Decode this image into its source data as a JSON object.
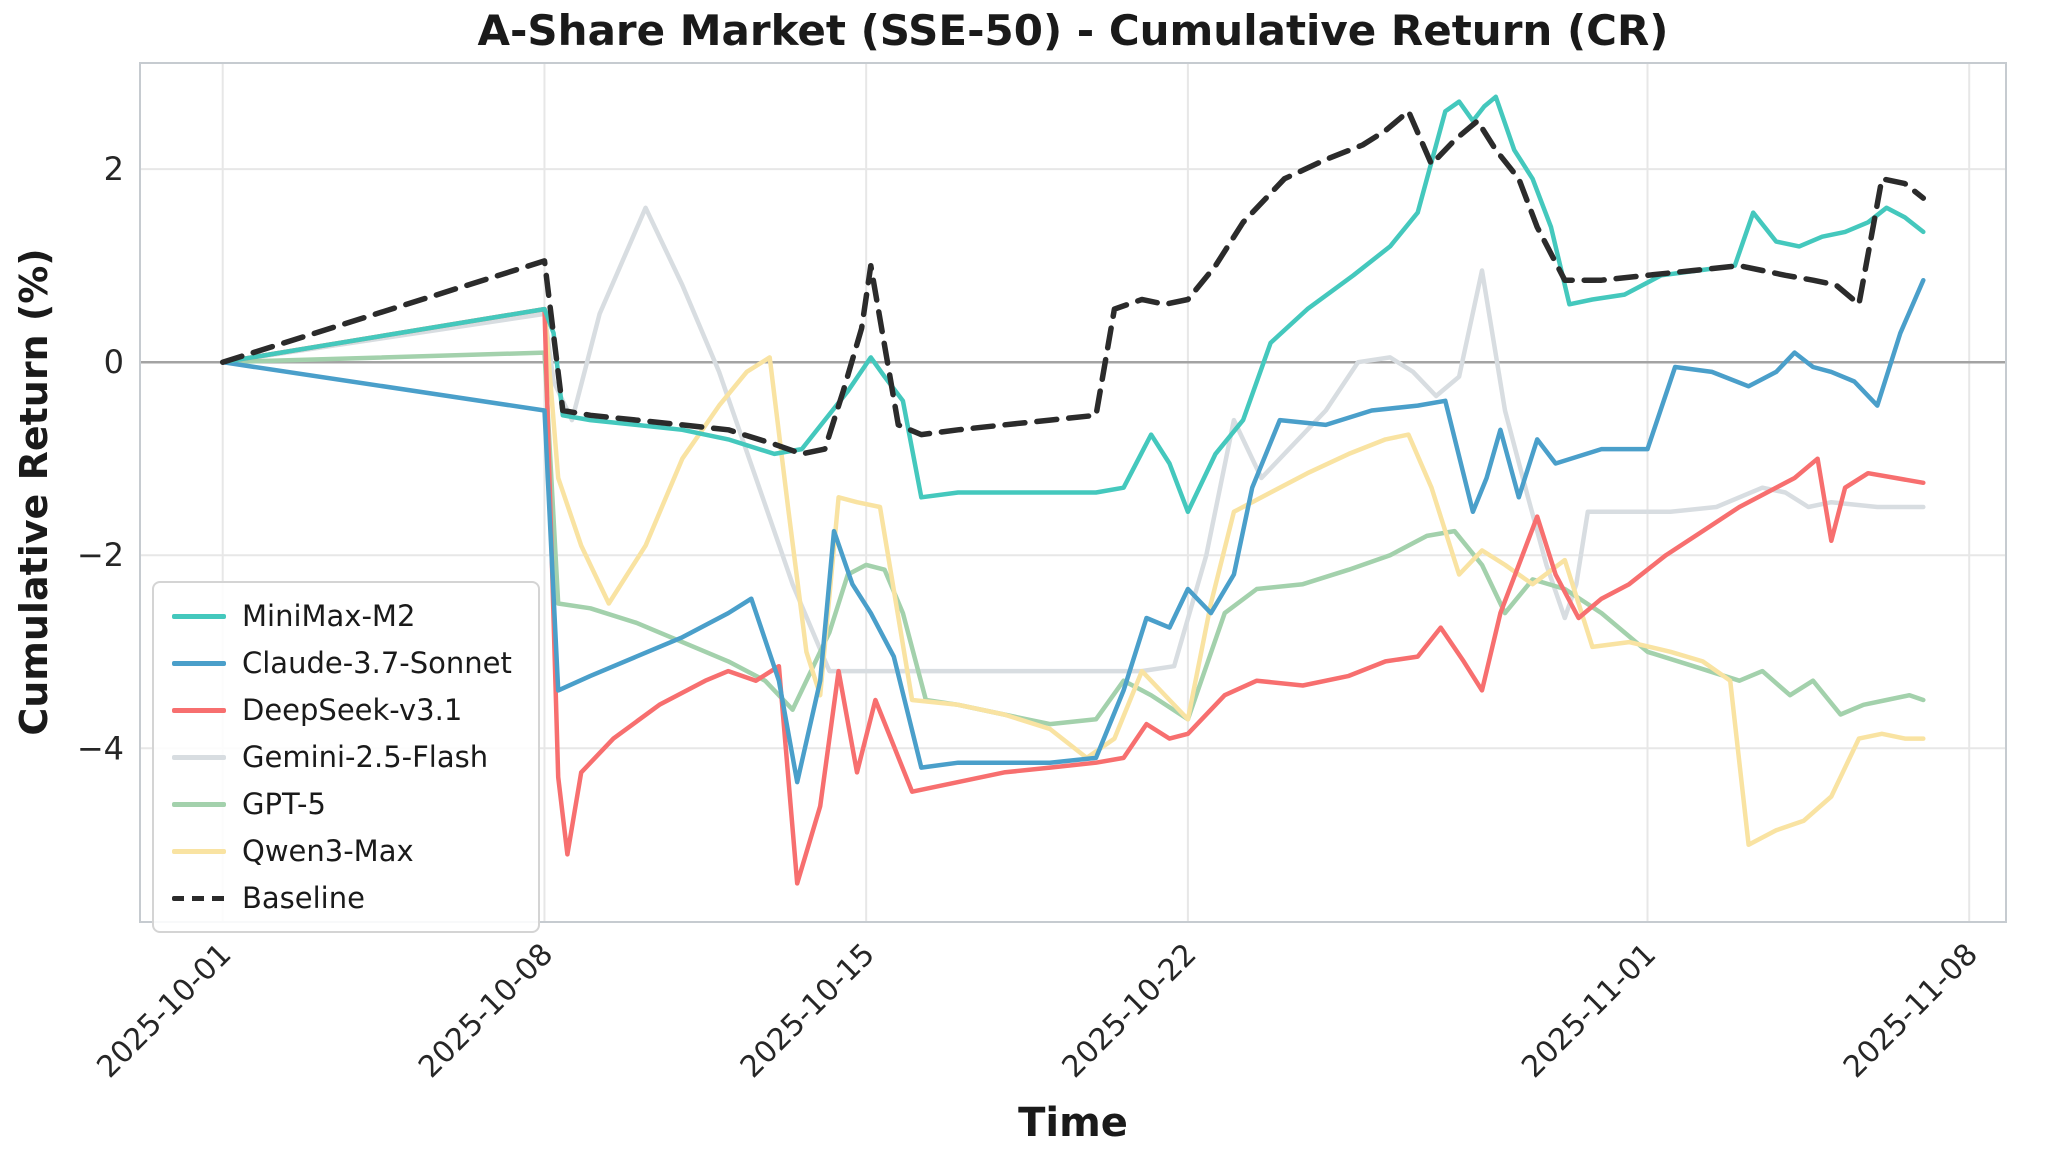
{
  "chart_data": {
    "type": "line",
    "title": "A-Share Market (SSE-50) - Cumulative Return (CR)",
    "xlabel": "Time",
    "ylabel": "Cumulative Return (%)",
    "x_unit": "days since 2025-10-01",
    "xlim": [
      -1.8,
      38.8
    ],
    "ylim": [
      -5.8,
      3.1
    ],
    "grid": true,
    "legend_position": "lower left",
    "zero_line_value": 0,
    "grid_color": "#e7e7e7",
    "zero_line_color": "#a3a3a3",
    "spine_color": "#c6cbd0",
    "x_ticks": [
      {
        "label": "2025-10-01",
        "day": 0
      },
      {
        "label": "2025-10-08",
        "day": 7
      },
      {
        "label": "2025-10-15",
        "day": 14
      },
      {
        "label": "2025-10-22",
        "day": 21
      },
      {
        "label": "2025-11-01",
        "day": 31
      },
      {
        "label": "2025-11-08",
        "day": 38
      }
    ],
    "y_ticks": [
      {
        "label": "2",
        "value": 2
      },
      {
        "label": "0",
        "value": 0
      },
      {
        "label": "−2",
        "value": -2
      },
      {
        "label": "−4",
        "value": -4
      }
    ],
    "series": [
      {
        "name": "MiniMax-M2",
        "color": "#44c8bd",
        "style": "solid",
        "width": 4.5,
        "x": [
          0,
          7.0,
          7.2,
          7.4,
          8.0,
          9.0,
          10.0,
          11.0,
          12.0,
          12.6,
          13.1,
          13.6,
          14.1,
          14.4,
          14.8,
          15.2,
          16.0,
          17.0,
          18.0,
          19.0,
          19.6,
          20.2,
          20.6,
          21.0,
          21.6,
          22.2,
          22.8,
          23.6,
          24.6,
          25.4,
          26.0,
          26.6,
          26.9,
          27.2,
          27.45,
          27.7,
          28.1,
          28.5,
          28.9,
          29.3,
          29.8,
          30.5,
          31.3,
          32.1,
          32.9,
          33.3,
          33.8,
          34.3,
          34.8,
          35.3,
          35.8,
          36.2,
          36.6,
          37.0
        ],
        "y": [
          0,
          0.55,
          0.3,
          -0.55,
          -0.6,
          -0.65,
          -0.7,
          -0.8,
          -0.95,
          -0.9,
          -0.6,
          -0.3,
          0.05,
          -0.15,
          -0.4,
          -1.4,
          -1.35,
          -1.35,
          -1.35,
          -1.35,
          -1.3,
          -0.75,
          -1.05,
          -1.55,
          -0.95,
          -0.6,
          0.2,
          0.55,
          0.9,
          1.2,
          1.55,
          2.6,
          2.7,
          2.5,
          2.65,
          2.75,
          2.2,
          1.9,
          1.4,
          0.6,
          0.65,
          0.7,
          0.9,
          0.95,
          1.0,
          1.55,
          1.25,
          1.2,
          1.3,
          1.35,
          1.45,
          1.6,
          1.5,
          1.35
        ]
      },
      {
        "name": "Claude-3.7-Sonnet",
        "color": "#4a9fca",
        "style": "solid",
        "width": 4.5,
        "x": [
          0,
          7.0,
          7.3,
          8.0,
          9.0,
          10.0,
          11.0,
          11.5,
          12.1,
          12.5,
          13.0,
          13.3,
          13.7,
          14.1,
          14.6,
          15.2,
          16.0,
          17.0,
          18.0,
          19.0,
          19.6,
          20.1,
          20.6,
          21.0,
          21.5,
          22.0,
          22.4,
          23.0,
          24.0,
          25.0,
          26.0,
          26.6,
          27.2,
          27.5,
          27.8,
          28.2,
          28.6,
          29.0,
          30.0,
          31.0,
          31.6,
          32.4,
          33.2,
          33.8,
          34.2,
          34.6,
          35.0,
          35.5,
          36.0,
          36.5,
          37.0
        ],
        "y": [
          0,
          -0.5,
          -3.4,
          -3.25,
          -3.05,
          -2.85,
          -2.6,
          -2.45,
          -3.3,
          -4.35,
          -3.3,
          -1.75,
          -2.3,
          -2.6,
          -3.05,
          -4.2,
          -4.15,
          -4.15,
          -4.15,
          -4.1,
          -3.4,
          -2.65,
          -2.75,
          -2.35,
          -2.6,
          -2.2,
          -1.3,
          -0.6,
          -0.65,
          -0.5,
          -0.45,
          -0.4,
          -1.55,
          -1.2,
          -0.7,
          -1.4,
          -0.8,
          -1.05,
          -0.9,
          -0.9,
          -0.05,
          -0.1,
          -0.25,
          -0.1,
          0.1,
          -0.05,
          -0.1,
          -0.2,
          -0.45,
          0.3,
          0.85
        ]
      },
      {
        "name": "DeepSeek-v3.1",
        "color": "#f76f6f",
        "style": "solid",
        "width": 4.5,
        "x": [
          0,
          7.0,
          7.3,
          7.5,
          7.8,
          8.5,
          9.5,
          10.5,
          11.0,
          11.6,
          12.1,
          12.5,
          13.0,
          13.4,
          13.8,
          14.2,
          15.0,
          16.0,
          17.0,
          18.0,
          19.0,
          19.6,
          20.1,
          20.6,
          21.0,
          21.8,
          22.5,
          23.5,
          24.5,
          25.3,
          26.0,
          26.5,
          27.0,
          27.4,
          27.8,
          28.2,
          28.6,
          29.0,
          29.5,
          30.0,
          30.6,
          31.4,
          32.2,
          33.0,
          33.6,
          34.2,
          34.7,
          35.0,
          35.3,
          35.8,
          36.4,
          37.0
        ],
        "y": [
          0,
          0.55,
          -4.3,
          -5.1,
          -4.25,
          -3.9,
          -3.55,
          -3.3,
          -3.2,
          -3.3,
          -3.15,
          -5.4,
          -4.6,
          -3.2,
          -4.25,
          -3.5,
          -4.45,
          -4.35,
          -4.25,
          -4.2,
          -4.15,
          -4.1,
          -3.75,
          -3.9,
          -3.85,
          -3.45,
          -3.3,
          -3.35,
          -3.25,
          -3.1,
          -3.05,
          -2.75,
          -3.1,
          -3.4,
          -2.6,
          -2.1,
          -1.6,
          -2.2,
          -2.65,
          -2.45,
          -2.3,
          -2.0,
          -1.75,
          -1.5,
          -1.35,
          -1.2,
          -1.0,
          -1.85,
          -1.3,
          -1.15,
          -1.2,
          -1.25
        ]
      },
      {
        "name": "Gemini-2.5-Flash",
        "color": "#d8dde1",
        "style": "solid",
        "width": 4.5,
        "x": [
          0,
          7.0,
          7.2,
          7.6,
          8.2,
          9.2,
          10.0,
          10.8,
          11.6,
          12.4,
          13.2,
          14.0,
          15.0,
          16.0,
          17.0,
          18.0,
          19.0,
          20.0,
          20.7,
          21.4,
          22.0,
          22.6,
          23.2,
          24.0,
          24.7,
          25.4,
          25.9,
          26.4,
          26.9,
          27.4,
          27.9,
          28.4,
          28.8,
          29.2,
          29.45,
          29.7,
          30.5,
          31.5,
          32.5,
          33.5,
          34.0,
          34.5,
          35.0,
          36.0,
          37.0
        ],
        "y": [
          0,
          0.5,
          -0.2,
          -0.6,
          0.5,
          1.6,
          0.8,
          -0.1,
          -1.2,
          -2.3,
          -3.2,
          -3.2,
          -3.2,
          -3.2,
          -3.2,
          -3.2,
          -3.2,
          -3.2,
          -3.15,
          -2.0,
          -0.6,
          -1.2,
          -0.9,
          -0.5,
          0.0,
          0.05,
          -0.1,
          -0.35,
          -0.15,
          0.95,
          -0.5,
          -1.4,
          -2.1,
          -2.65,
          -2.3,
          -1.55,
          -1.55,
          -1.55,
          -1.5,
          -1.3,
          -1.35,
          -1.5,
          -1.45,
          -1.5,
          -1.5
        ]
      },
      {
        "name": "GPT-5",
        "color": "#a3d1ac",
        "style": "solid",
        "width": 4.5,
        "x": [
          0,
          7.0,
          7.3,
          8.0,
          9.0,
          10.0,
          11.0,
          11.8,
          12.4,
          12.8,
          13.2,
          13.6,
          14.0,
          14.4,
          14.8,
          15.3,
          16.0,
          17.0,
          18.0,
          19.0,
          19.6,
          20.2,
          21.0,
          21.8,
          22.5,
          23.5,
          24.5,
          25.4,
          26.2,
          26.8,
          27.4,
          27.9,
          28.5,
          29.2,
          30.0,
          31.0,
          32.0,
          33.0,
          33.5,
          34.1,
          34.6,
          35.2,
          35.7,
          36.2,
          36.7,
          37.0
        ],
        "y": [
          0,
          0.1,
          -2.5,
          -2.55,
          -2.7,
          -2.9,
          -3.1,
          -3.3,
          -3.6,
          -3.2,
          -2.8,
          -2.2,
          -2.1,
          -2.15,
          -2.6,
          -3.5,
          -3.55,
          -3.65,
          -3.75,
          -3.7,
          -3.3,
          -3.45,
          -3.7,
          -2.6,
          -2.35,
          -2.3,
          -2.15,
          -2.0,
          -1.8,
          -1.75,
          -2.1,
          -2.6,
          -2.25,
          -2.35,
          -2.6,
          -3.0,
          -3.15,
          -3.3,
          -3.2,
          -3.45,
          -3.3,
          -3.65,
          -3.55,
          -3.5,
          -3.45,
          -3.5
        ]
      },
      {
        "name": "Qwen3-Max",
        "color": "#f9e3a2",
        "style": "solid",
        "width": 4.5,
        "x": [
          0,
          7.0,
          7.3,
          7.8,
          8.4,
          9.2,
          10.0,
          10.8,
          11.4,
          11.9,
          12.3,
          12.7,
          13.0,
          13.4,
          13.8,
          14.3,
          15.0,
          16.0,
          17.0,
          18.0,
          18.8,
          19.4,
          20.0,
          20.6,
          21.0,
          21.5,
          22.0,
          22.8,
          23.6,
          24.5,
          25.3,
          25.8,
          26.3,
          26.9,
          27.4,
          27.9,
          28.5,
          29.2,
          29.8,
          30.6,
          31.5,
          32.2,
          32.8,
          33.2,
          33.8,
          34.4,
          35.0,
          35.6,
          36.1,
          36.6,
          37.0
        ],
        "y": [
          0,
          0.55,
          -1.2,
          -1.9,
          -2.5,
          -1.9,
          -1.0,
          -0.45,
          -0.1,
          0.05,
          -1.5,
          -3.0,
          -3.45,
          -1.4,
          -1.45,
          -1.5,
          -3.5,
          -3.55,
          -3.65,
          -3.8,
          -4.1,
          -3.9,
          -3.2,
          -3.5,
          -3.7,
          -2.5,
          -1.55,
          -1.35,
          -1.15,
          -0.95,
          -0.8,
          -0.75,
          -1.3,
          -2.2,
          -1.95,
          -2.1,
          -2.3,
          -2.05,
          -2.95,
          -2.9,
          -3.0,
          -3.1,
          -3.3,
          -5.0,
          -4.85,
          -4.75,
          -4.5,
          -3.9,
          -3.85,
          -3.9,
          -3.9
        ]
      },
      {
        "name": "Baseline",
        "color": "#2b2b2b",
        "style": "dashed",
        "width": 5.5,
        "x": [
          0,
          7.0,
          7.4,
          8.0,
          9.0,
          10.0,
          11.0,
          12.0,
          12.6,
          13.1,
          13.5,
          13.9,
          14.1,
          14.7,
          15.2,
          16.0,
          17.0,
          18.0,
          19.0,
          19.4,
          20.0,
          20.5,
          21.0,
          21.6,
          22.2,
          23.1,
          24.0,
          24.8,
          25.3,
          25.8,
          26.3,
          26.8,
          27.3,
          27.7,
          28.2,
          28.6,
          29.2,
          30.0,
          31.0,
          32.0,
          33.0,
          33.5,
          34.0,
          34.6,
          35.1,
          35.6,
          36.1,
          36.6,
          37.0
        ],
        "y": [
          0,
          1.05,
          -0.5,
          -0.55,
          -0.6,
          -0.65,
          -0.7,
          -0.85,
          -0.95,
          -0.9,
          -0.3,
          0.35,
          1.0,
          -0.65,
          -0.75,
          -0.7,
          -0.65,
          -0.6,
          -0.55,
          0.55,
          0.65,
          0.6,
          0.65,
          1.0,
          1.45,
          1.9,
          2.1,
          2.25,
          2.4,
          2.6,
          2.05,
          2.3,
          2.5,
          2.2,
          1.9,
          1.4,
          0.85,
          0.85,
          0.9,
          0.95,
          1.0,
          0.95,
          0.9,
          0.85,
          0.8,
          0.6,
          1.9,
          1.85,
          1.7
        ]
      }
    ]
  }
}
